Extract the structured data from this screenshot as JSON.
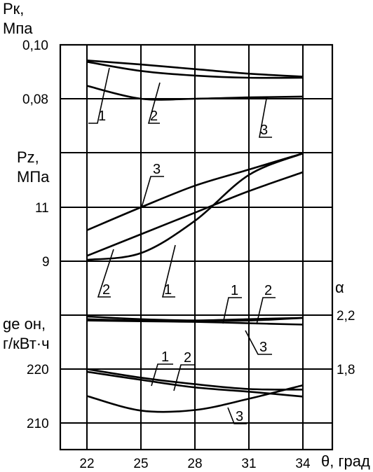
{
  "chart_data": {
    "type": "line",
    "x": {
      "label": "θ, град",
      "ticks": [
        "22",
        "25",
        "28",
        "31",
        "34"
      ],
      "range": [
        22,
        34
      ]
    },
    "panels": [
      {
        "id": "pk",
        "label_main": "Pк,",
        "label_unit": "Мпа",
        "yrange": [
          0.07,
          0.1
        ],
        "ticks": [
          {
            "value": 0.1,
            "label": "0,10"
          },
          {
            "value": 0.08,
            "label": "0,08"
          }
        ],
        "series": [
          {
            "name": "1",
            "x": [
              22,
              25,
              28,
              31,
              34
            ],
            "y": [
              0.0942,
              0.0927,
              0.091,
              0.0893,
              0.0882
            ]
          },
          {
            "name": "2",
            "x": [
              22,
              25,
              28,
              31,
              34
            ],
            "y": [
              0.0937,
              0.0903,
              0.0886,
              0.0878,
              0.0878
            ]
          },
          {
            "name": "3",
            "x": [
              22,
              25,
              28,
              31,
              34
            ],
            "y": [
              0.0848,
              0.08,
              0.08,
              0.0805,
              0.0808
            ]
          }
        ],
        "series_labels": [
          "1",
          "2",
          "3"
        ]
      },
      {
        "id": "pz",
        "label_main": "Pz,",
        "label_unit": "МПа",
        "yrange": [
          9,
          13
        ],
        "ticks": [
          {
            "value": 11,
            "label": "11"
          },
          {
            "value": 9,
            "label": "9"
          }
        ],
        "series": [
          {
            "name": "1",
            "x": [
              22,
              25,
              28,
              31,
              34
            ],
            "y": [
              9.05,
              9.3,
              10.5,
              12.2,
              13.0
            ]
          },
          {
            "name": "2",
            "x": [
              22,
              25,
              28,
              31,
              34
            ],
            "y": [
              9.2,
              10.0,
              10.8,
              11.6,
              12.3
            ]
          },
          {
            "name": "3",
            "x": [
              22,
              25,
              28,
              31,
              34
            ],
            "y": [
              10.15,
              11.0,
              11.8,
              12.4,
              13.0
            ]
          }
        ],
        "series_labels": [
          "3",
          "2",
          "1"
        ]
      },
      {
        "id": "alpha",
        "label_main": "α",
        "yrange": [
          1.8,
          2.2
        ],
        "ticks": [
          {
            "value": 2.2,
            "label": "2,2"
          },
          {
            "value": 1.8,
            "label": "1,8"
          }
        ],
        "series": [
          {
            "name": "1",
            "x": [
              22,
              25,
              28,
              31,
              34
            ],
            "y": [
              2.17,
              2.16,
              2.16,
              2.17,
              2.18
            ]
          },
          {
            "name": "2",
            "x": [
              22,
              25,
              28,
              31,
              34
            ],
            "y": [
              2.19,
              2.17,
              2.16,
              2.16,
              2.18
            ]
          },
          {
            "name": "3",
            "x": [
              22,
              25,
              28,
              31,
              34
            ],
            "y": [
              2.16,
              2.155,
              2.15,
              2.14,
              2.13
            ]
          }
        ],
        "series_labels": [
          "1",
          "2",
          "3"
        ]
      },
      {
        "id": "ge",
        "label_main": "ge он,",
        "label_unit": "г/кВт·ч",
        "yrange": [
          210,
          230
        ],
        "ticks": [
          {
            "value": 220,
            "label": "220"
          },
          {
            "value": 210,
            "label": "210"
          }
        ],
        "series": [
          {
            "name": "1",
            "x": [
              22,
              25,
              28,
              31,
              34
            ],
            "y": [
              220.0,
              218.4,
              217.2,
              216.3,
              216.2
            ]
          },
          {
            "name": "2",
            "x": [
              22,
              25,
              28,
              31,
              34
            ],
            "y": [
              219.5,
              218.0,
              216.6,
              215.8,
              214.9
            ]
          },
          {
            "name": "3",
            "x": [
              22,
              25,
              28,
              31,
              34
            ],
            "y": [
              215.0,
              212.3,
              212.4,
              214.5,
              217.0
            ]
          }
        ],
        "series_labels": [
          "1",
          "2",
          "3"
        ]
      }
    ]
  }
}
